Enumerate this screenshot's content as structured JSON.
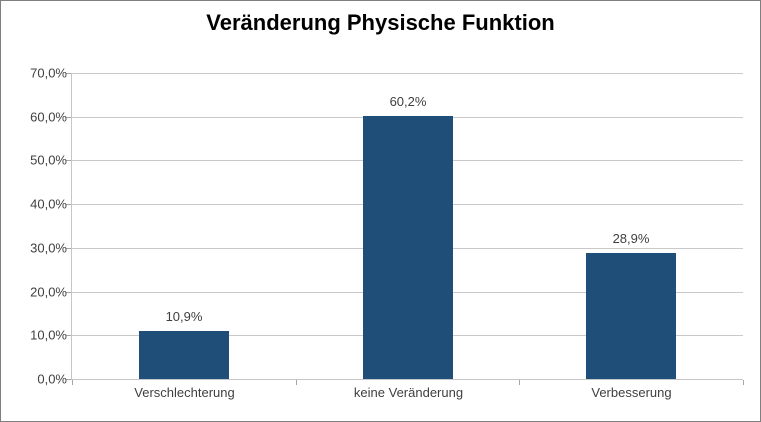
{
  "window": {
    "background_color": "#FFFFFF",
    "border_color": "#7F7F7F"
  },
  "chart_data": {
    "type": "bar",
    "title": "Veränderung Physische Funktion",
    "categories": [
      "Verschlechterung",
      "keine Veränderung",
      "Verbesserung"
    ],
    "values": [
      10.9,
      60.2,
      28.9
    ],
    "data_labels": [
      "10,9%",
      "60,2%",
      "28,9%"
    ],
    "xlabel": "",
    "ylabel": "",
    "ylim": [
      0,
      70
    ],
    "y_ticks": [
      {
        "value": 0,
        "label": "0,0%"
      },
      {
        "value": 10,
        "label": "10,0%"
      },
      {
        "value": 20,
        "label": "20,0%"
      },
      {
        "value": 30,
        "label": "30,0%"
      },
      {
        "value": 40,
        "label": "40,0%"
      },
      {
        "value": 50,
        "label": "50,0%"
      },
      {
        "value": 60,
        "label": "60,0%"
      },
      {
        "value": 70,
        "label": "70,0%"
      }
    ],
    "grid": true,
    "legend": "none",
    "bar_color": "#1F4E79",
    "gridline_color": "#C9C9C9",
    "axis_color": "#C6C6C6",
    "label_color": "#3F3F3F",
    "title_color": "#000000"
  }
}
